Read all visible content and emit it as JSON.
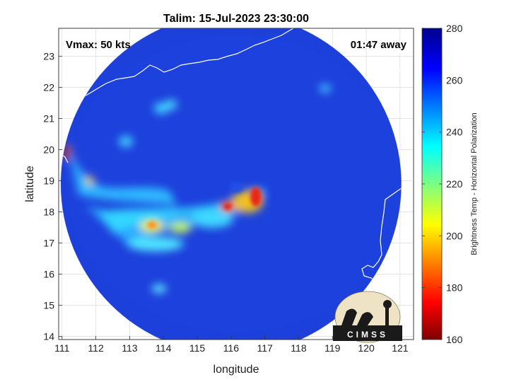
{
  "chart_data": {
    "type": "heatmap",
    "title": "Talim: 15-Jul-2023 23:30:00",
    "xlabel": "longitude",
    "ylabel": "latitude",
    "xlim": [
      110.9,
      121.4
    ],
    "ylim": [
      13.9,
      23.9
    ],
    "xticks": [
      111,
      112,
      113,
      114,
      115,
      116,
      117,
      118,
      119,
      120,
      121
    ],
    "yticks": [
      14,
      15,
      16,
      17,
      18,
      19,
      20,
      21,
      22,
      23
    ],
    "grid": true,
    "annotations": {
      "left": "Vmax: 50 kts",
      "right": "01:47 away"
    },
    "colorbar": {
      "label": "Brightness Temp - Horizontal Polarization",
      "min": 160,
      "max": 280,
      "ticks": [
        160,
        180,
        200,
        220,
        240,
        260,
        280
      ],
      "colormap": "jet"
    },
    "storm_center": {
      "lon": 116.3,
      "lat": 18.6
    },
    "swath": {
      "center_lon": 116.0,
      "center_lat": 18.9,
      "radius_deg": 5.3
    }
  },
  "logo": {
    "text": "CIMSS",
    "icon": "cimss-logo-icon"
  },
  "colors": {
    "ocean": "#1b3bd8",
    "background": "#ffffff",
    "coastline": "#ffffff"
  }
}
